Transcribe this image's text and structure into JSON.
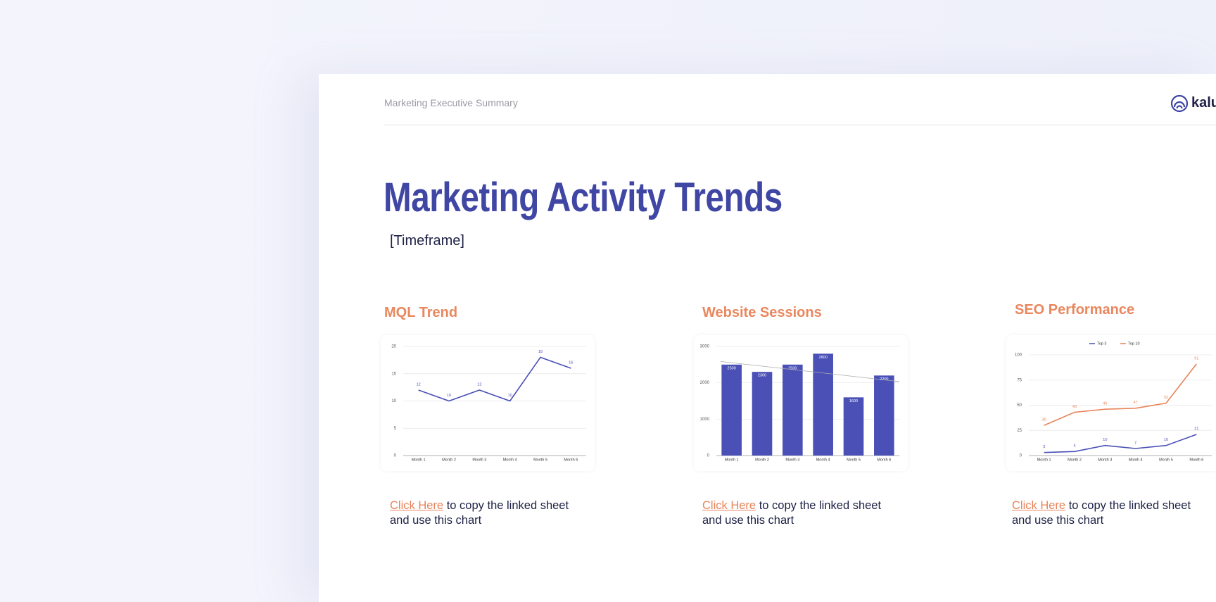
{
  "header": {
    "doc_label": "Marketing Executive Summary",
    "logo": "kalu"
  },
  "title": "Marketing Activity Trends",
  "subtitle": "[Timeframe]",
  "chart_data": [
    {
      "type": "line",
      "title": "MQL Trend",
      "categories": [
        "Month 1",
        "Month 2",
        "Month 3",
        "Month 4",
        "Month 5",
        "Month 6"
      ],
      "values": [
        12,
        10,
        12,
        10,
        18,
        16
      ],
      "color": "#4a50b6",
      "ylim": [
        0,
        20
      ],
      "yticks": [
        0,
        5,
        10,
        15,
        20
      ],
      "grid": true,
      "data_labels": true
    },
    {
      "type": "bar",
      "title": "Website Sessions",
      "categories": [
        "Month 1",
        "Month 2",
        "Month 3",
        "Month 4",
        "Month 5",
        "Month 6"
      ],
      "values": [
        2500,
        2300,
        2500,
        2800,
        1600,
        2200
      ],
      "color": "#4a50b6",
      "ylim": [
        0,
        3000
      ],
      "yticks": [
        0,
        1000,
        2000,
        3000
      ],
      "grid": true,
      "data_labels": true,
      "trendline": true
    },
    {
      "type": "line",
      "title": "SEO Performance",
      "categories": [
        "Month 1",
        "Month 2",
        "Month 3",
        "Month 4",
        "Month 5",
        "Month 6"
      ],
      "series": [
        {
          "name": "Top 3",
          "color": "#4a50b6",
          "values": [
            3,
            4,
            10,
            7,
            10,
            21
          ]
        },
        {
          "name": "Top 10",
          "color": "#e8845a",
          "values": [
            30,
            43,
            46,
            47,
            52,
            91
          ]
        }
      ],
      "ylim": [
        0,
        100
      ],
      "yticks": [
        0,
        25,
        50,
        75,
        100
      ],
      "grid": true,
      "data_labels": true,
      "legend": "top"
    }
  ],
  "links": [
    {
      "link": "Click Here",
      "text": "to copy the linked sheet and use this chart"
    },
    {
      "link": "Click Here",
      "text": "to copy the linked sheet and use this chart"
    },
    {
      "link": "Click Here",
      "text": "to copy the linked sheet and use this chart"
    }
  ]
}
